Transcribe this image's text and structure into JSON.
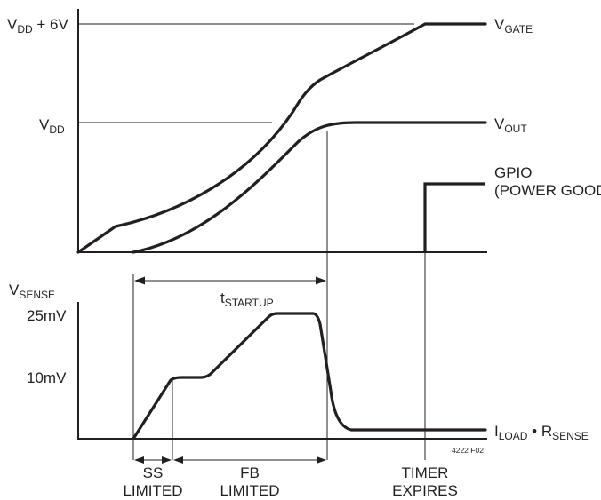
{
  "top_plot": {
    "y_label_vdd_plus_6v": {
      "main": "V",
      "sub": "DD",
      "rest": " + 6V"
    },
    "y_label_vdd": {
      "main": "V",
      "sub": "DD"
    },
    "trace_vgate": {
      "main": "V",
      "sub": "GATE"
    },
    "trace_vout": {
      "main": "V",
      "sub": "OUT"
    },
    "trace_gpio_line1": "GPIO",
    "trace_gpio_line2": "(POWER GOOD)"
  },
  "bottom_plot": {
    "y_label_vsense": {
      "main": "V",
      "sub": "SENSE"
    },
    "tick_25mv": "25mV",
    "tick_10mv": "10mV",
    "tstartup": {
      "main": "t",
      "sub": "STARTUP"
    },
    "steady_state": {
      "i_main": "I",
      "i_sub": "LOAD",
      "bullet": " • R",
      "r_sub": "SENSE"
    },
    "figure_code": "4222 F02"
  },
  "phases": {
    "ss_line1": "SS",
    "ss_line2": "LIMITED",
    "fb_line1": "FB",
    "fb_line2": "LIMITED",
    "timer_line1": "TIMER",
    "timer_line2": "EXPIRES"
  }
}
